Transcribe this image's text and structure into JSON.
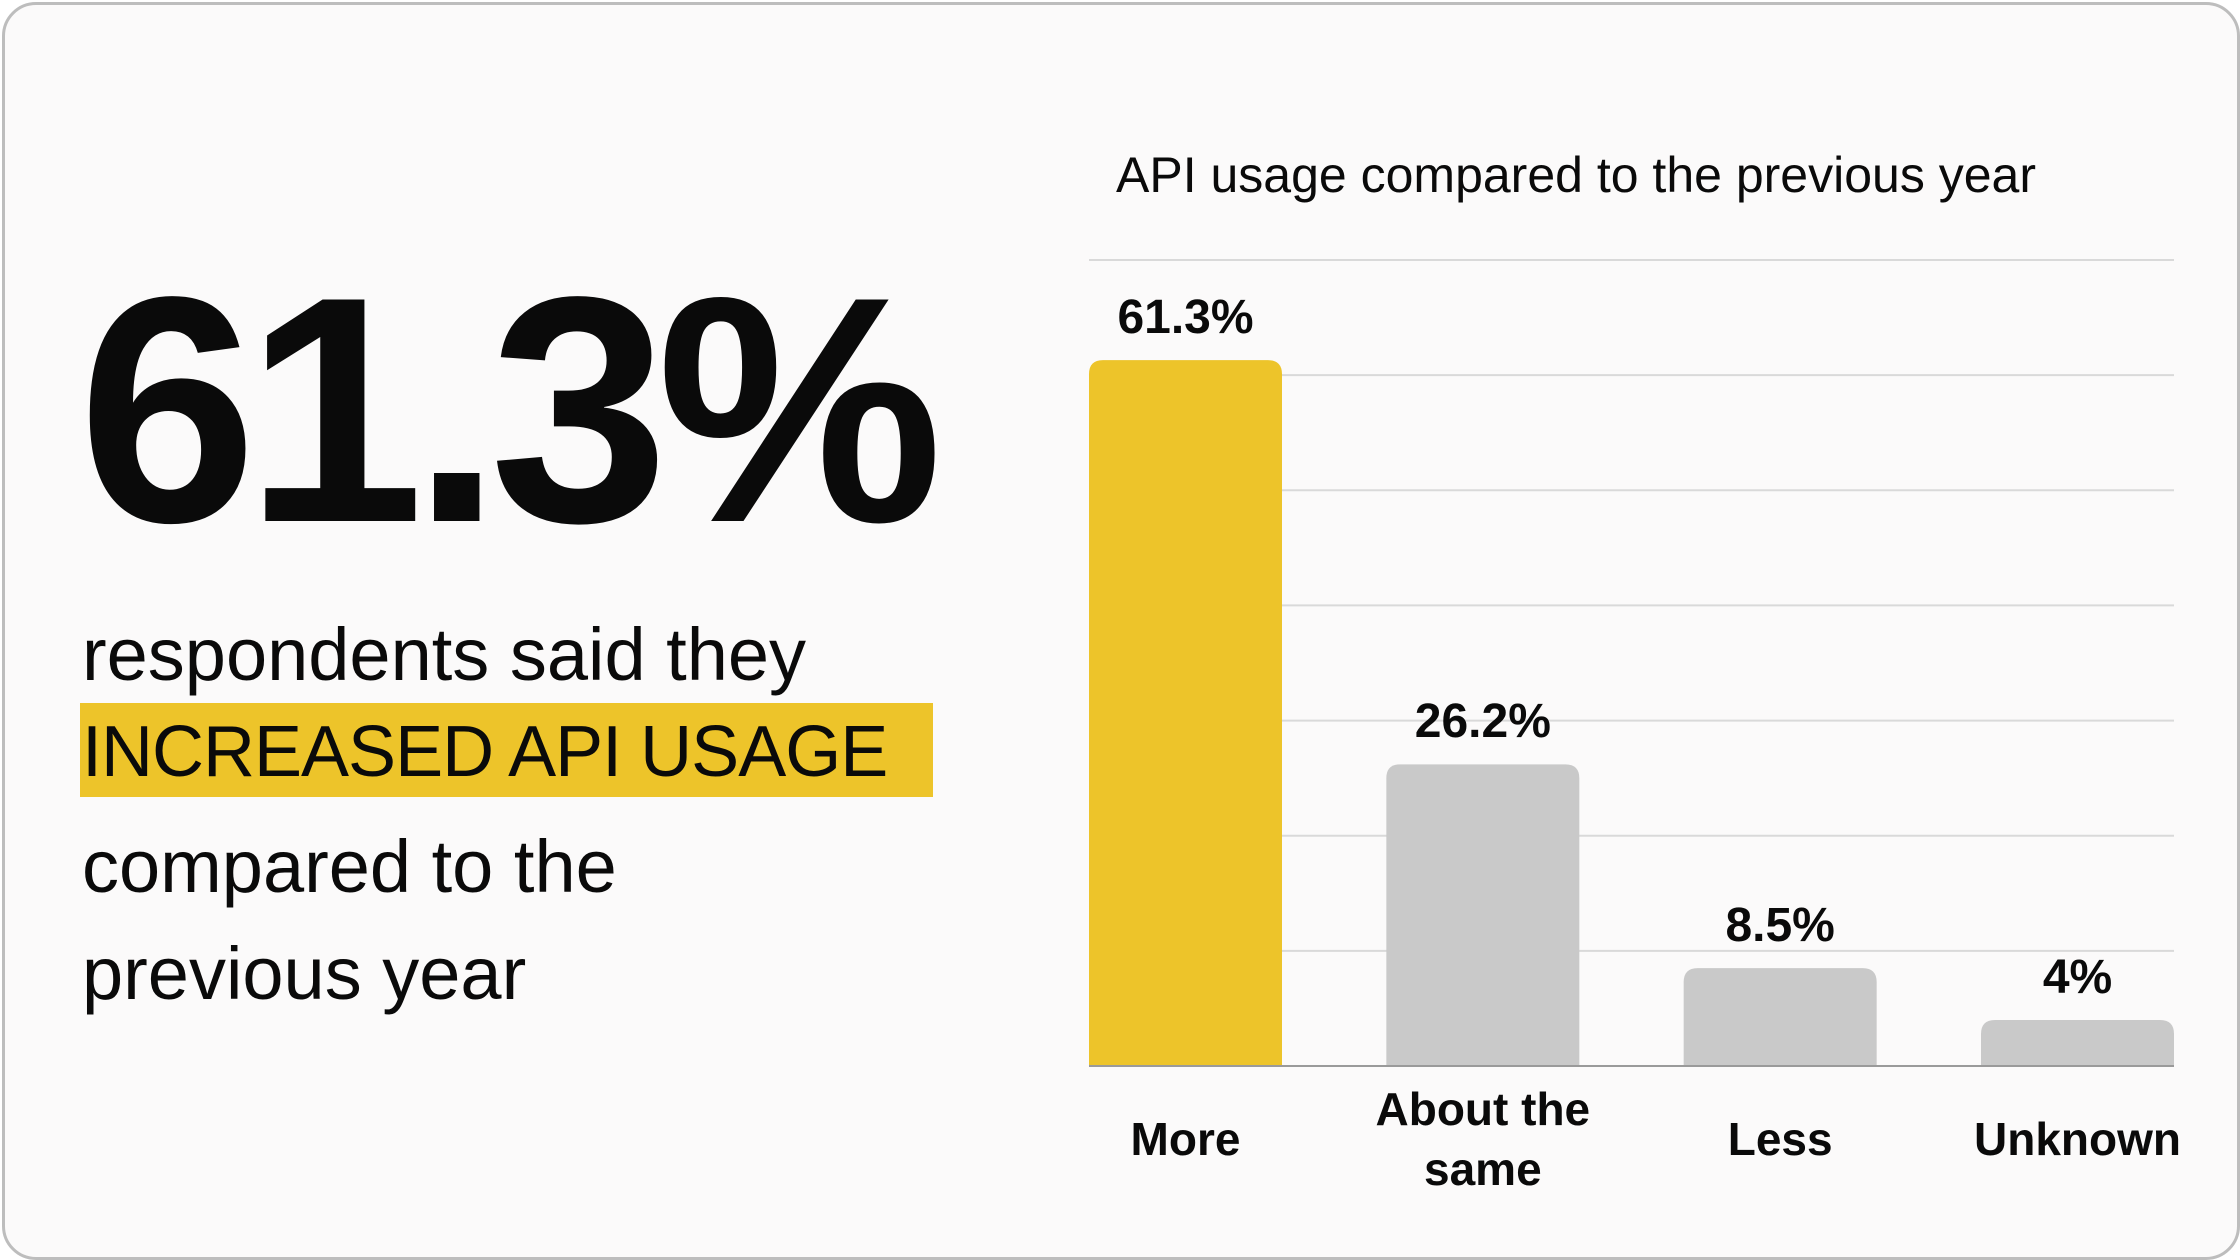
{
  "headline": {
    "stat": "61.3%",
    "line1": "respondents said they",
    "highlight": "INCREASED API USAGE",
    "line3": "compared to the",
    "line4": "previous year"
  },
  "colors": {
    "highlight": "#edc42a",
    "bar_primary": "#edc42a",
    "bar_secondary": "#c9c9c9",
    "grid": "#d9d9d9"
  },
  "chart_data": {
    "type": "bar",
    "title": "API usage compared to the previous year",
    "categories": [
      "More",
      "About the same",
      "Less",
      "Unknown"
    ],
    "values": [
      61.3,
      26.2,
      8.5,
      4
    ],
    "value_labels": [
      "61.3%",
      "26.2%",
      "8.5%",
      "4%"
    ],
    "ylim": [
      0,
      70
    ],
    "grid": true,
    "grid_step": 10,
    "xlabel": "",
    "ylabel": ""
  }
}
